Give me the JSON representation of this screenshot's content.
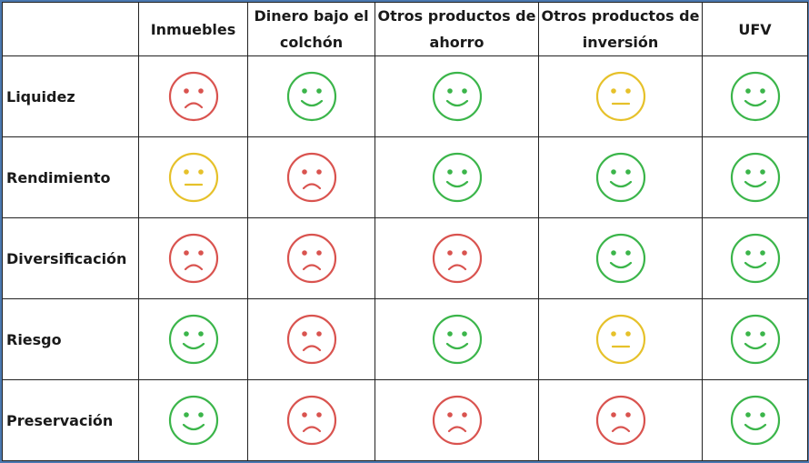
{
  "table": {
    "columns": [
      "Inmuebles",
      "Dinero bajo el colchón",
      "Otros productos de ahorro",
      "Otros productos de inversión",
      "UFV"
    ],
    "rows": [
      {
        "label": "Liquidez",
        "cells": [
          {
            "face": "sad",
            "color": "#d9534f"
          },
          {
            "face": "happy",
            "color": "#3bb54a"
          },
          {
            "face": "happy",
            "color": "#3bb54a"
          },
          {
            "face": "neutral",
            "color": "#e6c12a"
          },
          {
            "face": "happy",
            "color": "#3bb54a"
          }
        ]
      },
      {
        "label": "Rendimiento",
        "cells": [
          {
            "face": "neutral",
            "color": "#e6c12a"
          },
          {
            "face": "sad",
            "color": "#d9534f"
          },
          {
            "face": "happy",
            "color": "#3bb54a"
          },
          {
            "face": "happy",
            "color": "#3bb54a"
          },
          {
            "face": "happy",
            "color": "#3bb54a"
          }
        ]
      },
      {
        "label": "Diversificación",
        "cells": [
          {
            "face": "sad",
            "color": "#d9534f"
          },
          {
            "face": "sad",
            "color": "#d9534f"
          },
          {
            "face": "sad",
            "color": "#d9534f"
          },
          {
            "face": "happy",
            "color": "#3bb54a"
          },
          {
            "face": "happy",
            "color": "#3bb54a"
          }
        ]
      },
      {
        "label": "Riesgo",
        "cells": [
          {
            "face": "happy",
            "color": "#3bb54a"
          },
          {
            "face": "sad",
            "color": "#d9534f"
          },
          {
            "face": "happy",
            "color": "#3bb54a"
          },
          {
            "face": "neutral",
            "color": "#e6c12a"
          },
          {
            "face": "happy",
            "color": "#3bb54a"
          }
        ]
      },
      {
        "label": "Preservación",
        "cells": [
          {
            "face": "happy",
            "color": "#3bb54a"
          },
          {
            "face": "sad",
            "color": "#d9534f"
          },
          {
            "face": "sad",
            "color": "#d9534f"
          },
          {
            "face": "sad",
            "color": "#d9534f"
          },
          {
            "face": "happy",
            "color": "#3bb54a"
          }
        ]
      }
    ]
  }
}
